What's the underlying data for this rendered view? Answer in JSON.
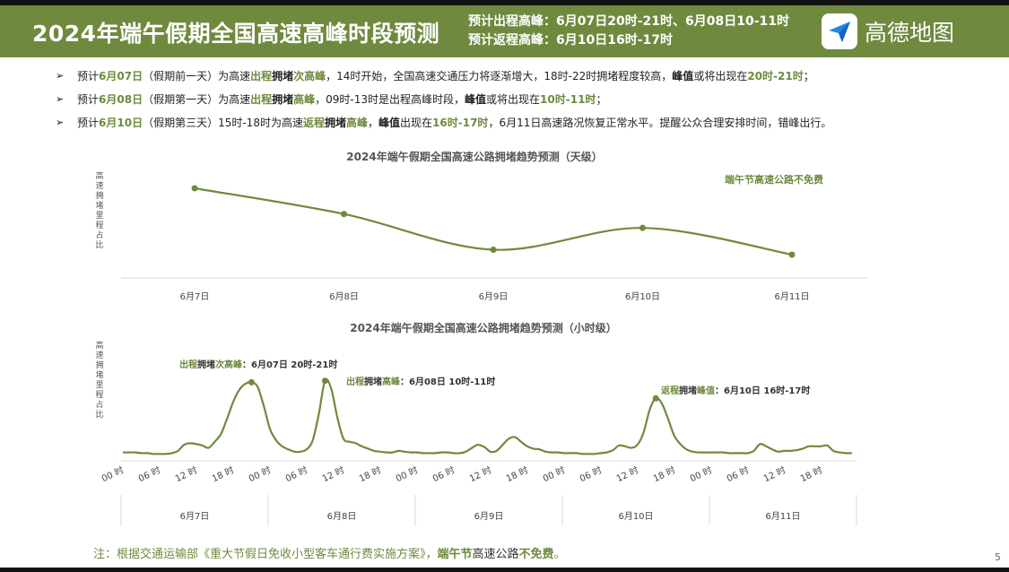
{
  "header": {
    "title": "2024年端午假期全国高速高峰时段预测",
    "outbound_peak": "预计出程高峰：6月07日20时-21时、6月08日10-11时",
    "return_peak": "预计返程高峰：6月10日16时-17时",
    "logo_text": "高德地图",
    "logo_icon": "paper-plane-icon"
  },
  "bullets": [
    {
      "segments": [
        {
          "t": "预计",
          "s": ""
        },
        {
          "t": "6月07日",
          "s": "g"
        },
        {
          "t": "（假期前一天）为高速",
          "s": ""
        },
        {
          "t": "出程",
          "s": "g"
        },
        {
          "t": "拥堵",
          "s": "b"
        },
        {
          "t": "次高峰",
          "s": "g"
        },
        {
          "t": "，14时开始，全国高速交通压力将逐渐增大，18时-22时拥堵程度较高，",
          "s": ""
        },
        {
          "t": "峰值",
          "s": "b"
        },
        {
          "t": "或将出现在",
          "s": ""
        },
        {
          "t": "20时-21时",
          "s": "g"
        },
        {
          "t": "；",
          "s": ""
        }
      ]
    },
    {
      "segments": [
        {
          "t": "预计",
          "s": ""
        },
        {
          "t": "6月08日",
          "s": "g"
        },
        {
          "t": "（假期第一天）为高速",
          "s": ""
        },
        {
          "t": "出程",
          "s": "g"
        },
        {
          "t": "拥堵",
          "s": "b"
        },
        {
          "t": "高峰",
          "s": "g"
        },
        {
          "t": "，09时-13时是出程高峰时段，",
          "s": ""
        },
        {
          "t": "峰值",
          "s": "b"
        },
        {
          "t": "或将出现在",
          "s": ""
        },
        {
          "t": "10时-11时",
          "s": "g"
        },
        {
          "t": "；",
          "s": ""
        }
      ]
    },
    {
      "segments": [
        {
          "t": "预计",
          "s": ""
        },
        {
          "t": "6月10日",
          "s": "g"
        },
        {
          "t": "（假期第三天）15时-18时为高速",
          "s": ""
        },
        {
          "t": "返程",
          "s": "g"
        },
        {
          "t": "拥堵",
          "s": "b"
        },
        {
          "t": "高峰",
          "s": "g"
        },
        {
          "t": "，",
          "s": ""
        },
        {
          "t": "峰值",
          "s": "b"
        },
        {
          "t": "出现在",
          "s": ""
        },
        {
          "t": "16时-17时",
          "s": "g"
        },
        {
          "t": "，6月11日高速路况恢复正常水平。提醒公众合理安排时间，错峰出行。",
          "s": ""
        }
      ]
    }
  ],
  "chart_data": [
    {
      "type": "line",
      "title": "2024年端午假期全国高速公路拥堵趋势预测（天级）",
      "ylabel": "高速拥堵里程占比",
      "categories": [
        "6月7日",
        "6月8日",
        "6月9日",
        "6月10日",
        "6月11日"
      ],
      "values": [
        1.0,
        0.74,
        0.38,
        0.6,
        0.33
      ],
      "note": "端午节高速公路不免费",
      "grid": false,
      "color": "#6f8a3e"
    },
    {
      "type": "line",
      "title": "2024年端午假期全国高速公路拥堵趋势预测（小时级）",
      "ylabel": "高速拥堵里程占比",
      "hour_labels": [
        "00 时",
        "06 时",
        "12 时",
        "18 时"
      ],
      "day_labels": [
        "6月7日",
        "6月8日",
        "6月9日",
        "6月10日",
        "6月11日"
      ],
      "values": [
        0.04,
        0.04,
        0.04,
        0.03,
        0.03,
        0.02,
        0.02,
        0.02,
        0.03,
        0.06,
        0.14,
        0.16,
        0.15,
        0.13,
        0.1,
        0.18,
        0.28,
        0.48,
        0.7,
        0.86,
        0.94,
        0.96,
        0.9,
        0.65,
        0.35,
        0.2,
        0.12,
        0.08,
        0.05,
        0.05,
        0.08,
        0.2,
        0.55,
        0.98,
        0.88,
        0.5,
        0.22,
        0.18,
        0.16,
        0.12,
        0.09,
        0.06,
        0.05,
        0.04,
        0.04,
        0.06,
        0.05,
        0.04,
        0.04,
        0.03,
        0.03,
        0.03,
        0.04,
        0.04,
        0.03,
        0.03,
        0.05,
        0.1,
        0.14,
        0.11,
        0.05,
        0.06,
        0.14,
        0.22,
        0.24,
        0.18,
        0.12,
        0.09,
        0.08,
        0.05,
        0.04,
        0.04,
        0.03,
        0.03,
        0.03,
        0.02,
        0.02,
        0.02,
        0.03,
        0.04,
        0.07,
        0.13,
        0.12,
        0.1,
        0.14,
        0.3,
        0.6,
        0.75,
        0.68,
        0.48,
        0.26,
        0.15,
        0.08,
        0.05,
        0.04,
        0.04,
        0.04,
        0.04,
        0.04,
        0.03,
        0.03,
        0.03,
        0.03,
        0.06,
        0.15,
        0.12,
        0.08,
        0.05,
        0.06,
        0.06,
        0.07,
        0.09,
        0.12,
        0.12,
        0.12,
        0.13,
        0.06,
        0.04,
        0.03,
        0.03
      ],
      "peaks": [
        {
          "index": 21,
          "label_g": "出程",
          "label_b": "拥堵",
          "label_g2": "次高峰",
          "label_rest": "：6月07日 20时-21时"
        },
        {
          "index": 33,
          "label_g": "出程",
          "label_b": "拥堵",
          "label_g2": "高峰",
          "label_rest": "：6月08日 10时-11时"
        },
        {
          "index": 87,
          "label_g": "返程",
          "label_b": "拥堵",
          "label_g2": "峰值",
          "label_rest": "：6月10日 16时-17时"
        }
      ],
      "grid": false,
      "color": "#6f8a3e"
    }
  ],
  "footnote": {
    "prefix": "注：根据交通运输部《重大节假日免收小型客车通行费实施方案》，",
    "bold1": "端午节",
    "mid": "高速公路",
    "bold2": "不免费",
    "suffix": "。"
  },
  "page_number": "5"
}
